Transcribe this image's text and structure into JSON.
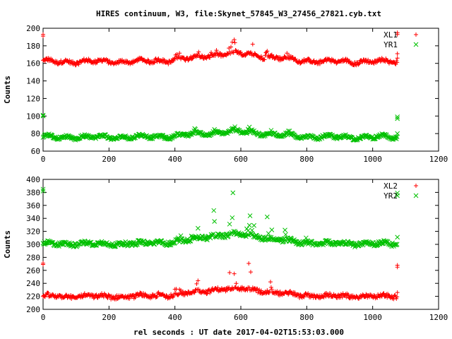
{
  "chart_data": [
    {
      "type": "scatter",
      "title": "HIRES continuum, W3, file:Skynet_57845_W3_27456_27821.cyb.txt",
      "ylabel": "Counts",
      "xlabel": "",
      "xlim": [
        0,
        1200
      ],
      "ylim": [
        60,
        200
      ],
      "xticks": [
        "0",
        "200",
        "400",
        "600",
        "800",
        "1000",
        "1200"
      ],
      "yticks": [
        "60",
        "80",
        "100",
        "120",
        "140",
        "160",
        "180",
        "200"
      ],
      "legend_position": "top-right",
      "grid": false,
      "series": [
        {
          "name": "XL1",
          "marker": "plus",
          "color": "#ff0000",
          "base": 162,
          "bump": 9,
          "peak_amp": 22,
          "noise": 2,
          "points": [
            [
              0,
              193
            ],
            [
              0,
              191
            ],
            [
              1075,
              195
            ],
            [
              1075,
              193
            ],
            [
              1075,
              171
            ],
            [
              1075,
              166
            ]
          ]
        },
        {
          "name": "YR1",
          "marker": "cross",
          "color": "#00c000",
          "base": 76,
          "bump": 6,
          "peak_amp": 8,
          "noise": 1.5,
          "points": [
            [
              0,
              101
            ],
            [
              0,
              100
            ],
            [
              1075,
              99
            ],
            [
              1075,
              97
            ],
            [
              1075,
              80
            ]
          ]
        }
      ]
    },
    {
      "type": "scatter",
      "title": "",
      "ylabel": "Counts",
      "xlabel": "rel seconds : UT date 2017-04-02T15:53:03.000",
      "xlim": [
        0,
        1200
      ],
      "ylim": [
        200,
        400
      ],
      "xticks": [
        "0",
        "200",
        "400",
        "600",
        "800",
        "1000",
        "1200"
      ],
      "yticks": [
        "200",
        "220",
        "240",
        "260",
        "280",
        "300",
        "320",
        "340",
        "360",
        "380",
        "400"
      ],
      "legend_position": "top-right",
      "grid": false,
      "series": [
        {
          "name": "XL2",
          "marker": "plus",
          "color": "#ff0000",
          "base": 220,
          "bump": 12,
          "peak_amp": 55,
          "noise": 3,
          "points": [
            [
              0,
              271
            ],
            [
              0,
              269
            ],
            [
              1075,
              268
            ],
            [
              1075,
              265
            ],
            [
              1075,
              226
            ]
          ]
        },
        {
          "name": "YR2",
          "marker": "cross",
          "color": "#00c000",
          "base": 301,
          "bump": 14,
          "peak_amp": 70,
          "noise": 3,
          "points": [
            [
              0,
              385
            ],
            [
              0,
              382
            ],
            [
              1075,
              379
            ],
            [
              1075,
              375
            ],
            [
              1075,
              311
            ]
          ]
        }
      ]
    }
  ]
}
